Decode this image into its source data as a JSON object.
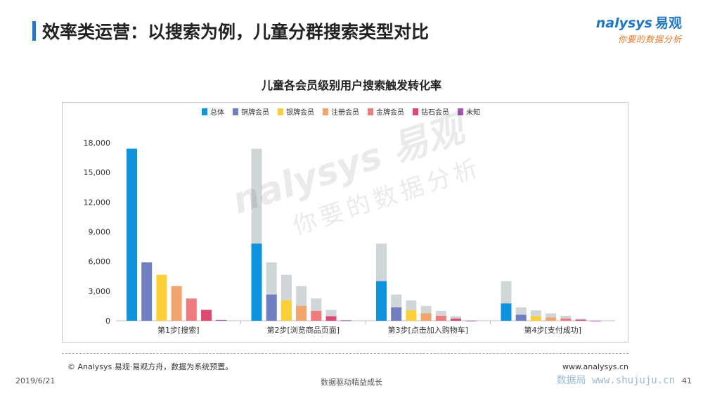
{
  "slide": {
    "title": "效率类运营：以搜索为例，儿童分群搜索类型对比",
    "logo_brand": "nalysys",
    "logo_cn": "易观",
    "logo_slogan": "你要的数据分析",
    "source": "© Analysys 易观·易观方舟，数据为系统预置。",
    "website": "www.analysys.cn",
    "date": "2019/6/21",
    "slogan": "数据驱动精益成长",
    "footer_watermark": "数据局 www.shujuju.cn",
    "page_number": "41",
    "watermark_line1": "nalysys 易观",
    "watermark_line2": "你要的数据分析"
  },
  "chart_data": {
    "type": "bar",
    "title": "儿童各会员级别用户搜索触发转化率",
    "categories": [
      "第1步[搜索]",
      "第2步[浏览商品页面]",
      "第3步[点击加入购物车]",
      "第4步[支付成功]"
    ],
    "ylim": [
      0,
      18000
    ],
    "yticks": [
      0,
      3000,
      6000,
      9000,
      12000,
      15000,
      18000
    ],
    "ytick_labels": [
      "0",
      "3,000",
      "6,000",
      "9,000",
      "12,000",
      "15,000",
      "18,000"
    ],
    "legend_position": "top",
    "grid": false,
    "previous_step_color": "#d0d5d8",
    "series": [
      {
        "name": "总体",
        "color": "#0e94dc",
        "values": [
          17400,
          7800,
          4000,
          1750
        ],
        "previous": [
          null,
          17400,
          7800,
          4000
        ]
      },
      {
        "name": "铜牌会员",
        "color": "#6f7fc2",
        "values": [
          5900,
          2650,
          1350,
          600
        ],
        "previous": [
          null,
          5900,
          2650,
          1350
        ]
      },
      {
        "name": "银牌会员",
        "color": "#fccf3a",
        "values": [
          4650,
          2050,
          1050,
          450
        ],
        "previous": [
          null,
          4650,
          2050,
          1050
        ]
      },
      {
        "name": "注册会员",
        "color": "#f2a46c",
        "values": [
          3500,
          1500,
          750,
          320
        ],
        "previous": [
          null,
          3500,
          1500,
          750
        ]
      },
      {
        "name": "金牌会员",
        "color": "#ef7b7e",
        "values": [
          2250,
          1000,
          500,
          220
        ],
        "previous": [
          null,
          2250,
          1000,
          500
        ]
      },
      {
        "name": "钻石会员",
        "color": "#e04874",
        "values": [
          1100,
          450,
          220,
          100
        ],
        "previous": [
          null,
          1100,
          450,
          220
        ]
      },
      {
        "name": "未知",
        "color": "#a55bb5",
        "values": [
          80,
          40,
          20,
          10
        ],
        "previous": [
          null,
          80,
          40,
          20
        ]
      }
    ]
  }
}
